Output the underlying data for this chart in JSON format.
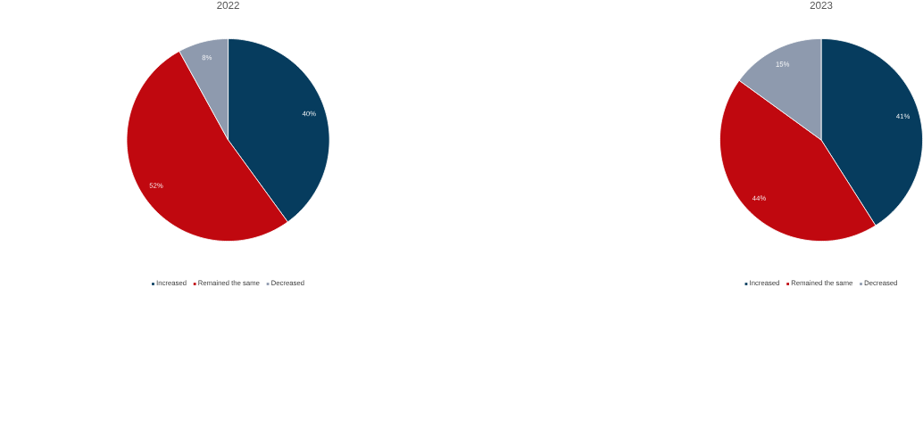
{
  "chart_data": [
    {
      "type": "pie",
      "title": "2022",
      "categories": [
        "Increased",
        "Remained the same",
        "Decreased"
      ],
      "values": [
        40,
        52,
        8
      ],
      "value_labels": [
        "40%",
        "52%",
        "8%"
      ],
      "colors": [
        "#063c5e",
        "#c0080f",
        "#8e9aae"
      ],
      "legend": "bottom"
    },
    {
      "type": "pie",
      "title": "2023",
      "categories": [
        "Increased",
        "Remained the same",
        "Decreased"
      ],
      "values": [
        41,
        44,
        15
      ],
      "value_labels": [
        "41%",
        "44%",
        "15%"
      ],
      "colors": [
        "#063c5e",
        "#c0080f",
        "#8e9aae"
      ],
      "legend": "bottom"
    }
  ]
}
